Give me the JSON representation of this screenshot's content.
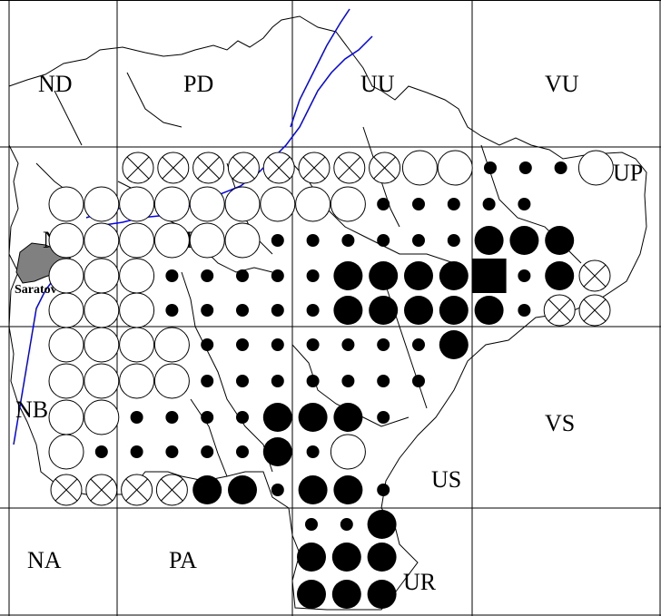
{
  "city": {
    "name": "Saratov"
  },
  "colors": {
    "river": "#0000ff",
    "city": "#808080",
    "ink": "#000000",
    "paper": "#ffffff"
  },
  "symbol_legend": {
    "filled_small": "small black dot",
    "filled_large": "large black dot",
    "filled_square": "black square",
    "open": "open circle",
    "crossed": "circle with X"
  },
  "squares": [
    {
      "code": "ND"
    },
    {
      "code": "PD"
    },
    {
      "code": "UU"
    },
    {
      "code": "VU"
    },
    {
      "code": "NC"
    },
    {
      "code": "PC"
    },
    {
      "code": "UP"
    },
    {
      "code": "NB"
    },
    {
      "code": "VS"
    },
    {
      "code": "US"
    },
    {
      "code": "NA"
    },
    {
      "code": "PA"
    },
    {
      "code": "UR"
    }
  ],
  "grid_records": [
    [
      "x",
      "x",
      "x",
      "x",
      "x",
      "x",
      "x",
      "x",
      "o",
      "o",
      "s",
      "s",
      "s",
      "o"
    ],
    [
      "o",
      "o",
      "o",
      "o",
      "o",
      "o",
      "o",
      "o",
      "o",
      "s",
      "s",
      "s",
      "s",
      "s"
    ],
    [
      "o",
      "o",
      "o",
      "o",
      "o",
      "o",
      "s",
      "s",
      "s",
      "s",
      "s",
      "s",
      "L",
      "L",
      "L"
    ],
    [
      "o",
      "o",
      "o",
      "s",
      "s",
      "s",
      "s",
      "s",
      "L",
      "L",
      "L",
      "L",
      "Q",
      "s",
      "L",
      "x"
    ],
    [
      "o",
      "o",
      "o",
      "s",
      "s",
      "s",
      "s",
      "s",
      "L",
      "L",
      "L",
      "L",
      "L",
      "s",
      "x",
      "x"
    ],
    [
      "o",
      "o",
      "o",
      "o",
      "s",
      "s",
      "s",
      "s",
      "s",
      "s",
      "s",
      "L"
    ],
    [
      "o",
      "o",
      "o",
      "o",
      "s",
      "s",
      "s",
      "s",
      "s",
      "s",
      "s"
    ],
    [
      "o",
      "o",
      "s",
      "s",
      "s",
      "s",
      "L",
      "L",
      "L",
      "s"
    ],
    [
      "o",
      "s",
      "s",
      "s",
      "s",
      "s",
      "L",
      "s",
      "o"
    ],
    [
      "x",
      "x",
      "x",
      "x",
      "L",
      "L",
      "s",
      "L",
      "L",
      "s"
    ],
    [
      "s",
      "s",
      "L"
    ],
    [
      "L",
      "L",
      "L"
    ],
    [
      "L",
      "L",
      "L"
    ]
  ]
}
